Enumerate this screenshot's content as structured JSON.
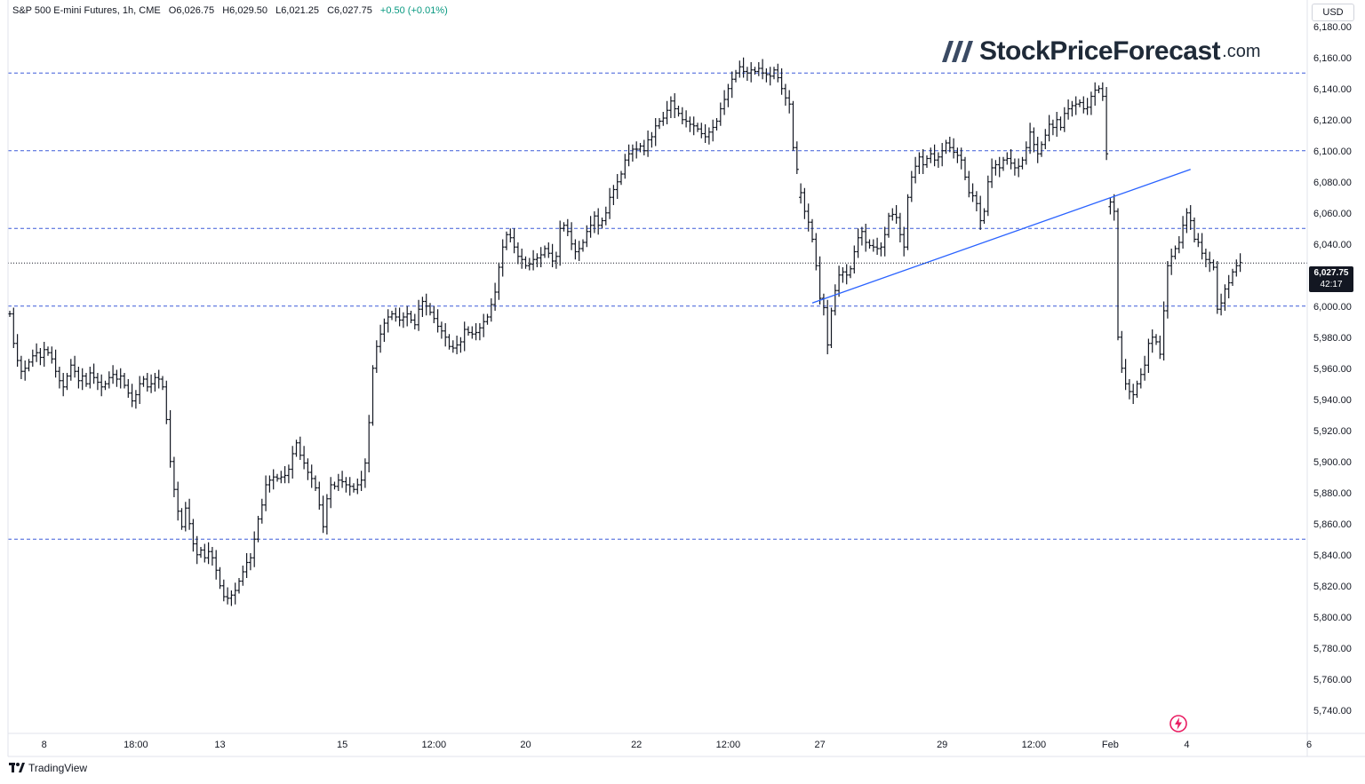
{
  "header": {
    "title": "S&P 500 E-mini Futures, 1h, CME",
    "open_label": "O",
    "open": "6,026.75",
    "high_label": "H",
    "high": "6,029.50",
    "low_label": "L",
    "low": "6,021.25",
    "close_label": "C",
    "close": "6,027.75",
    "change": "+0.50 (+0.01%)",
    "up_color": "#089981"
  },
  "logo": {
    "name": "StockPriceForecast",
    "suffix": ".com",
    "icon": "triple-slash-logo-icon"
  },
  "currency": "USD",
  "last_price": {
    "value": "6,027.75",
    "countdown": "42:17"
  },
  "brand": {
    "name": "TradingView",
    "icon": "tradingview-logo-icon"
  },
  "colors": {
    "support_resistance": "#3d5bd9",
    "trendline": "#2962ff",
    "candles": "#131722",
    "last_price_line": "#131722"
  },
  "icons": [
    "triple-slash-logo-icon",
    "tradingview-logo-icon",
    "lightning-bolt-icon"
  ],
  "chart_data": {
    "type": "line",
    "style": "ohlc-bars",
    "ylim": [
      5725,
      6197
    ],
    "y_ticks": [
      "6,180.00",
      "6,160.00",
      "6,140.00",
      "6,120.00",
      "6,100.00",
      "6,080.00",
      "6,060.00",
      "6,040.00",
      "6,000.00",
      "5,980.00",
      "5,960.00",
      "5,940.00",
      "5,920.00",
      "5,900.00",
      "5,880.00",
      "5,860.00",
      "5,840.00",
      "5,820.00",
      "5,800.00",
      "5,780.00",
      "5,760.00",
      "5,740.00"
    ],
    "y_tick_values": [
      6180,
      6160,
      6140,
      6120,
      6100,
      6080,
      6060,
      6040,
      6000,
      5980,
      5960,
      5940,
      5920,
      5900,
      5880,
      5860,
      5840,
      5820,
      5800,
      5780,
      5760,
      5740
    ],
    "x_ticks": [
      "8",
      "18:00",
      "13",
      "15",
      "12:00",
      "20",
      "22",
      "12:00",
      "27",
      "29",
      "12:00",
      "Feb",
      "4",
      "6"
    ],
    "x_tick_index": [
      9,
      33,
      55,
      87,
      111,
      135,
      164,
      188,
      212,
      244,
      268,
      288,
      308,
      340
    ],
    "horizontal_levels": [
      6150,
      6100,
      6050,
      6000,
      5850
    ],
    "last_price": 6027.75,
    "trendline": {
      "from": [
        210,
        6002
      ],
      "to": [
        309,
        6088
      ]
    },
    "gaps_after_index": [
      206,
      287
    ],
    "closes": [
      5995,
      5976,
      5965,
      5958,
      5960,
      5964,
      5968,
      5970,
      5967,
      5972,
      5970,
      5966,
      5958,
      5952,
      5948,
      5955,
      5962,
      5958,
      5952,
      5955,
      5950,
      5957,
      5954,
      5951,
      5948,
      5950,
      5954,
      5956,
      5953,
      5955,
      5949,
      5944,
      5939,
      5943,
      5950,
      5953,
      5948,
      5950,
      5954,
      5953,
      5948,
      5927,
      5900,
      5882,
      5868,
      5858,
      5870,
      5860,
      5847,
      5840,
      5843,
      5838,
      5842,
      5838,
      5830,
      5820,
      5813,
      5812,
      5814,
      5817,
      5823,
      5829,
      5835,
      5838,
      5850,
      5863,
      5872,
      5885,
      5888,
      5890,
      5889,
      5890,
      5891,
      5895,
      5905,
      5912,
      5904,
      5899,
      5893,
      5889,
      5883,
      5872,
      5858,
      5876,
      5885,
      5884,
      5888,
      5887,
      5885,
      5884,
      5882,
      5885,
      5888,
      5899,
      5925,
      5960,
      5974,
      5982,
      5989,
      5993,
      5995,
      5993,
      5991,
      5993,
      5995,
      5991,
      5988,
      5998,
      6003,
      6000,
      5996,
      5992,
      5987,
      5984,
      5980,
      5974,
      5973,
      5975,
      5977,
      5985,
      5983,
      5982,
      5983,
      5986,
      5990,
      5993,
      6001,
      6009,
      6025,
      6038,
      6046,
      6044,
      6038,
      6032,
      6030,
      6026,
      6027,
      6030,
      6031,
      6033,
      6037,
      6034,
      6029,
      6032,
      6050,
      6052,
      6048,
      6040,
      6035,
      6037,
      6041,
      6048,
      6052,
      6058,
      6052,
      6055,
      6060,
      6070,
      6075,
      6080,
      6085,
      6094,
      6098,
      6101,
      6101,
      6103,
      6100,
      6107,
      6109,
      6116,
      6119,
      6121,
      6126,
      6132,
      6127,
      6124,
      6120,
      6119,
      6117,
      6116,
      6114,
      6111,
      6109,
      6112,
      6115,
      6119,
      6127,
      6133,
      6140,
      6146,
      6150,
      6154,
      6151,
      6150,
      6152,
      6151,
      6153,
      6150,
      6149,
      6148,
      6152,
      6147,
      6140,
      6134,
      6130,
      6102,
      6088,
      6073,
      6061,
      6054,
      6043,
      6026,
      6005,
      5999,
      5975,
      5997,
      6010,
      6020,
      6022,
      6020,
      6024,
      6035,
      6044,
      6048,
      6041,
      6039,
      6038,
      6037,
      6038,
      6046,
      6058,
      6059,
      6057,
      6046,
      6038,
      6070,
      6083,
      6090,
      6096,
      6091,
      6095,
      6098,
      6094,
      6096,
      6100,
      6105,
      6102,
      6099,
      6097,
      6094,
      6083,
      6073,
      6071,
      6066,
      6055,
      6061,
      6080,
      6089,
      6091,
      6089,
      6094,
      6095,
      6092,
      6089,
      6090,
      6094,
      6102,
      6112,
      6104,
      6098,
      6104,
      6110,
      6117,
      6115,
      6120,
      6115,
      6124,
      6127,
      6129,
      6130,
      6131,
      6127,
      6128,
      6135,
      6139,
      6140,
      6135,
      6098,
      6067,
      6061,
      5980,
      5960,
      5950,
      5945,
      5943,
      5950,
      5956,
      5962,
      5976,
      5980,
      5977,
      5969,
      5997,
      6026,
      6032,
      6037,
      6041,
      6052,
      6060,
      6055,
      6043,
      6041,
      6034,
      6030,
      6028,
      6025,
      5998,
      6002,
      6011,
      6015,
      6022,
      6026,
      6028
    ]
  }
}
